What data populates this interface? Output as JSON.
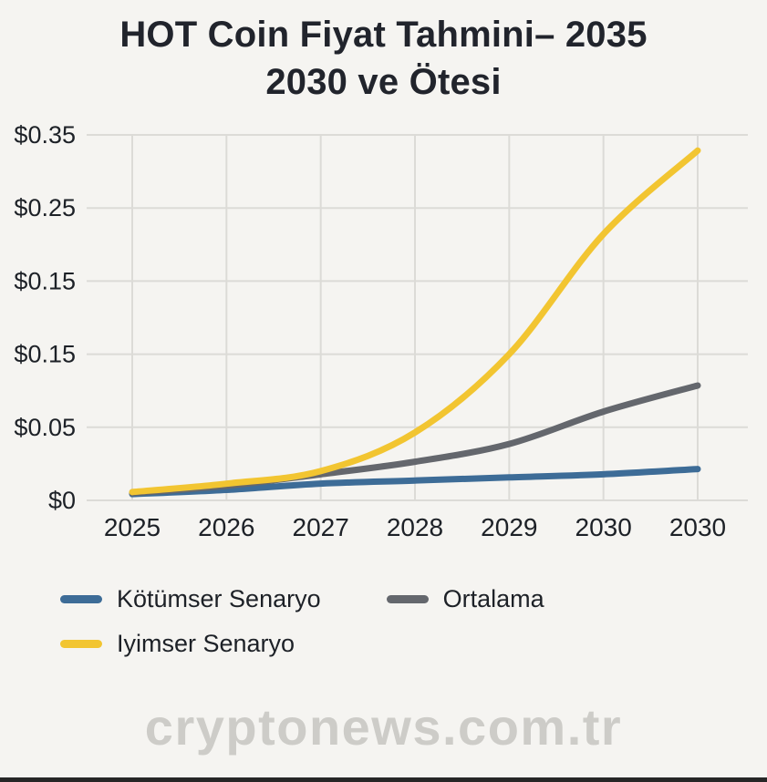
{
  "header": {
    "title_line1": "HOT Coin Fiyat Tahmini– 2035",
    "title_line2": "2030 ve Ötesi"
  },
  "watermark": {
    "text": "cryptonews.com.tr"
  },
  "colors": {
    "background": "#f5f4f1",
    "grid": "#dcdbd7",
    "axis_text": "#1d2127",
    "title_text": "#21242c"
  },
  "chart_data": {
    "type": "line",
    "title": "HOT Coin Fiyat Tahmini– 2035 2030 ve Ötesi",
    "categories": [
      "2025",
      "2026",
      "2027",
      "2028",
      "2029",
      "2030",
      "2030"
    ],
    "y_ticks_bottom_to_top": [
      "$0",
      "$0.05",
      "$0.15",
      "$0.15",
      "$0.25",
      "$0.35"
    ],
    "ylim": [
      0,
      0.35
    ],
    "grid": true,
    "legend_position": "bottom-left",
    "series": [
      {
        "name": "Kötümser Senaryo",
        "color": "#3d6c97",
        "values": [
          0.006,
          0.01,
          0.016,
          0.019,
          0.022,
          0.025,
          0.03
        ]
      },
      {
        "name": "Ortalama",
        "color": "#64676d",
        "values": [
          0.007,
          0.014,
          0.025,
          0.037,
          0.054,
          0.085,
          0.11
        ]
      },
      {
        "name": "Iyimser Senaryo",
        "color": "#f2c531",
        "values": [
          0.008,
          0.016,
          0.028,
          0.065,
          0.14,
          0.255,
          0.335
        ]
      }
    ]
  }
}
